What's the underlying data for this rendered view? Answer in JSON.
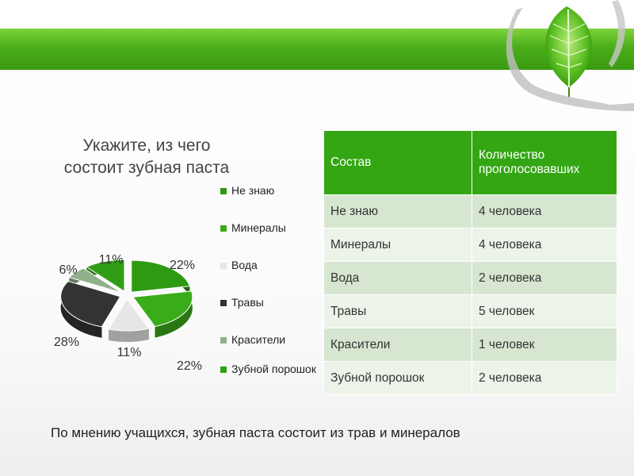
{
  "chart_data": {
    "type": "pie",
    "title": "Укажите, из чего состоит зубная паста",
    "title_lines": [
      "Укажите, из чего",
      "состоит зубная паста"
    ],
    "legend_position": "right",
    "slices": [
      {
        "label": "Не знаю",
        "value": 22,
        "display": "22%",
        "color": "#2e9a12"
      },
      {
        "label": "Минералы",
        "value": 22,
        "display": "22%",
        "color": "#3aab19"
      },
      {
        "label": "Вода",
        "value": 11,
        "display": "11%",
        "color": "#e6e6e6"
      },
      {
        "label": "Травы",
        "value": 28,
        "display": "28%",
        "color": "#333333"
      },
      {
        "label": "Красители",
        "value": 6,
        "display": "6%",
        "color": "#8fb08a"
      },
      {
        "label": "Зубной порошок",
        "value": 11,
        "display": "11%",
        "color": "#2f9e14"
      }
    ]
  },
  "table": {
    "headers": [
      "Состав",
      "Количество проголосовавших"
    ],
    "rows": [
      [
        "Не знаю",
        "4 человека"
      ],
      [
        "Минералы",
        "4 человека"
      ],
      [
        "Вода",
        "2 человека"
      ],
      [
        "Травы",
        "5 человек"
      ],
      [
        "Красители",
        "1 человек"
      ],
      [
        "Зубной порошок",
        "2 человека"
      ]
    ]
  },
  "conclusion": "По мнению учащихся, зубная паста состоит из трав и минералов",
  "decor": {
    "band_color": "#4aad1a",
    "icon": "leaf-in-hands-icon"
  }
}
